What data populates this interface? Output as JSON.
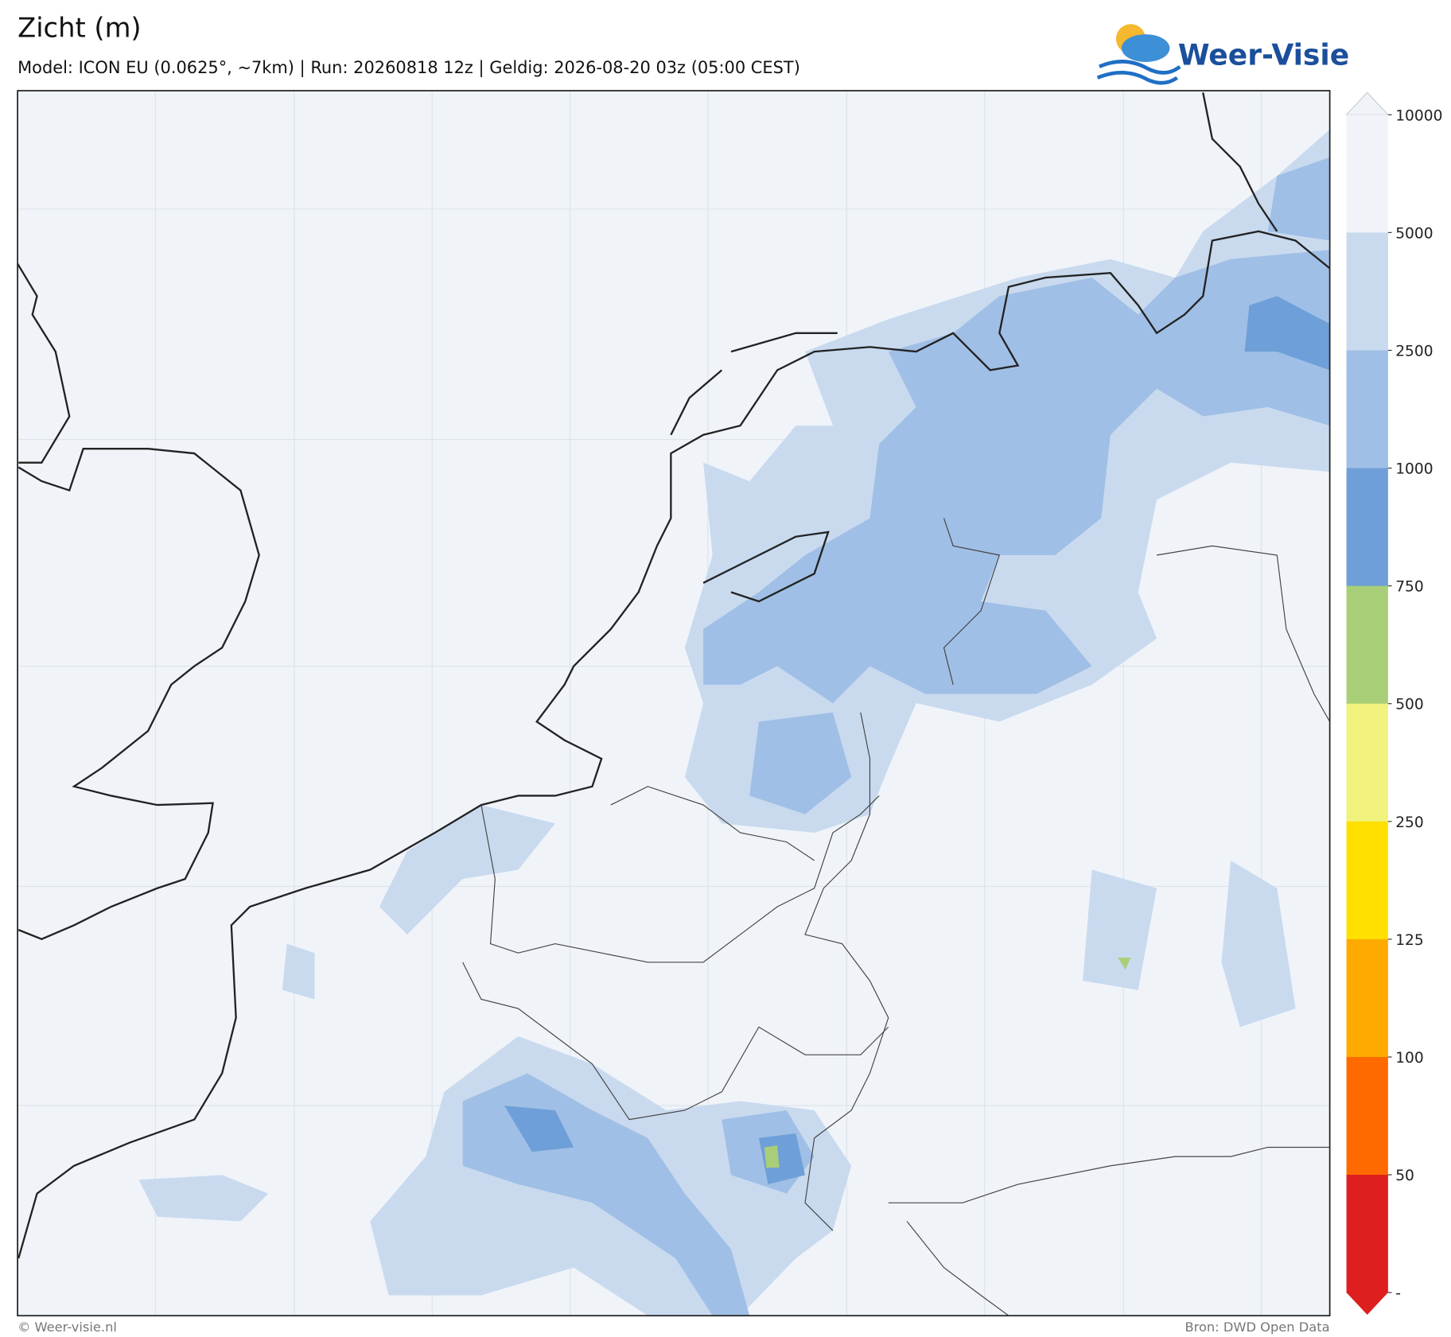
{
  "header": {
    "title": "Zicht (m)",
    "subtitle": "Model: ICON EU (0.0625°, ~7km)  |  Run: 20260818 12z  |  Geldig: 2026-08-20 03z (05:00 CEST)",
    "logo": "Weer-Visie"
  },
  "colorbar": {
    "labels": [
      "10000",
      "5000",
      "2500",
      "1000",
      "750",
      "500",
      "250",
      "125",
      "100",
      "50",
      "-"
    ],
    "colors": [
      "#f0f4f9",
      "#c9daef",
      "#a0bfe6",
      "#6f9fd8",
      "#a8cf78",
      "#f2f27e",
      "#ffe000",
      "#ffaa00",
      "#ff6a00",
      "#de1f1f"
    ]
  },
  "footer": {
    "left": "© Weer-visie.nl",
    "right": "Bron: DWD Open Data"
  }
}
